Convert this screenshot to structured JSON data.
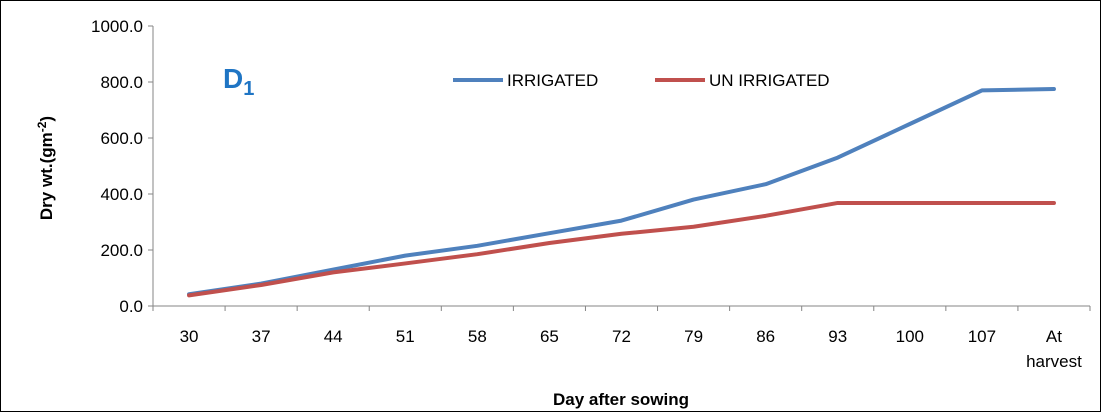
{
  "chart_data": {
    "type": "line",
    "title": "",
    "panel_label": {
      "main": "D",
      "sub": "1"
    },
    "xlabel": "Day after sowing",
    "ylabel": {
      "main": "Dry  wt.(gm",
      "sup": "-2",
      "close": ")"
    },
    "categories": [
      [
        "30"
      ],
      [
        "37"
      ],
      [
        "44"
      ],
      [
        "51"
      ],
      [
        "58"
      ],
      [
        "65"
      ],
      [
        "72"
      ],
      [
        "79"
      ],
      [
        "86"
      ],
      [
        "93"
      ],
      [
        "100"
      ],
      [
        "107"
      ],
      [
        "At",
        "harvest"
      ]
    ],
    "ylim": [
      0,
      1000
    ],
    "yticks": [
      0,
      200,
      400,
      600,
      800,
      1000
    ],
    "ytick_labels": [
      "0.0",
      "200.0",
      "400.0",
      "600.0",
      "800.0",
      "1000.0"
    ],
    "grid": false,
    "legend_position": "top",
    "series": [
      {
        "name": "IRRIGATED",
        "color": "#4F81BD",
        "values": [
          42,
          80,
          130,
          180,
          215,
          260,
          305,
          380,
          435,
          530,
          650,
          770,
          775
        ]
      },
      {
        "name": "UN IRRIGATED",
        "color": "#C0504D",
        "values": [
          38,
          75,
          120,
          152,
          185,
          225,
          258,
          283,
          322,
          368,
          368,
          368,
          368
        ]
      }
    ]
  }
}
